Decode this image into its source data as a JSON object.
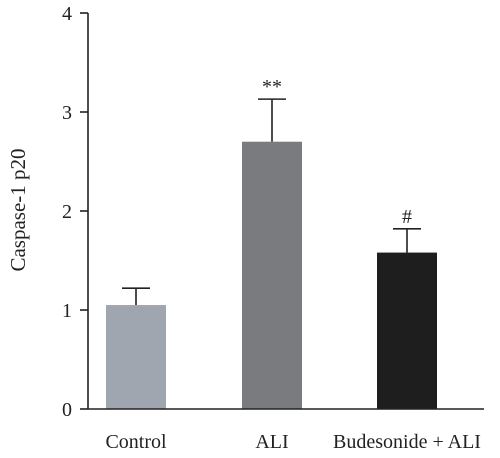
{
  "chart_data": {
    "type": "bar",
    "title": "",
    "xlabel": "",
    "ylabel": "Caspase-1 p20",
    "ylim": [
      0,
      4
    ],
    "yticks": [
      "0",
      "1",
      "2",
      "3",
      "4"
    ],
    "grid": false,
    "categories": [
      "Control",
      "ALI",
      "Budesonide + ALI"
    ],
    "values": [
      1.05,
      2.7,
      1.58
    ],
    "errors": [
      0.17,
      0.43,
      0.24
    ],
    "annotations": [
      "",
      "**",
      "#"
    ],
    "colors": [
      "#a0a6b0",
      "#7a7b7e",
      "#1f1e1f"
    ]
  }
}
